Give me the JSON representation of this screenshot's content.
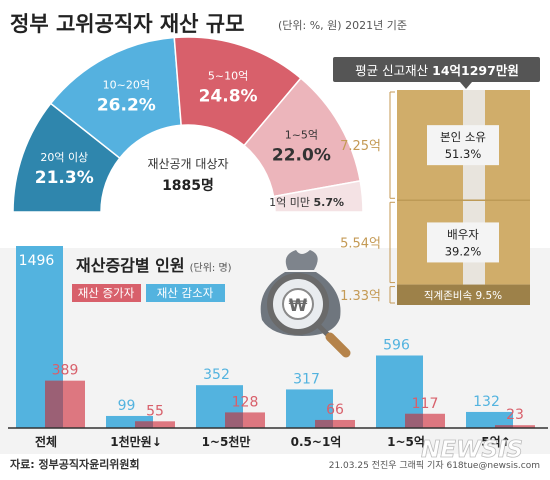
{
  "header": {
    "title": "정부 고위공직자 재산 규모",
    "unit_note": "(단위: %, 원) 2021년 기준"
  },
  "colors": {
    "background": "#ffffff",
    "bottom_band": "#f3f3f3",
    "increase": "#d8606b",
    "decrease": "#53b3df",
    "donut_dark": "#2f86ad",
    "donut_mid": "#55b1df",
    "donut_red": "#d8606b",
    "donut_pink": "#ecb5bb",
    "donut_light": "#f4e2e4",
    "box_tan": "#d0ad6a",
    "box_dark": "#9d8149",
    "tape": "#eaeaea",
    "inner_label_bg": "#f4f4f4",
    "left_value_text": "#c49a55"
  },
  "chart_data": [
    {
      "type": "pie",
      "variant": "semi-donut",
      "center_label": "재산공개 대상자",
      "center_value": "1885명",
      "slices": [
        {
          "label": "20억 이상",
          "value": 21.3,
          "value_text": "21.3%",
          "color": "#2f86ad"
        },
        {
          "label": "10~20억",
          "value": 26.2,
          "value_text": "26.2%",
          "color": "#55b1df"
        },
        {
          "label": "5~10억",
          "value": 24.8,
          "value_text": "24.8%",
          "color": "#d8606b"
        },
        {
          "label": "1~5억",
          "value": 22.0,
          "value_text": "22.0%",
          "color": "#ecb5bb"
        },
        {
          "label": "1억 미만",
          "value": 5.7,
          "value_text": "5.7%",
          "color": "#f4e2e4"
        }
      ]
    },
    {
      "type": "bar",
      "variant": "stacked-100",
      "title": "평균 신고재산",
      "title_value": "14억1297만원",
      "segments": [
        {
          "label": "본인 소유",
          "share": 51.3,
          "share_text": "51.3%",
          "amount": "7.25억"
        },
        {
          "label": "배우자",
          "share": 39.2,
          "share_text": "39.2%",
          "amount": "5.54억"
        },
        {
          "label": "직계존비속",
          "share": 9.5,
          "share_text": "9.5%",
          "amount": "1.33억"
        }
      ]
    },
    {
      "type": "bar",
      "title": "재산증감별 인원",
      "unit": "(단위: 명)",
      "categories": [
        "전체",
        "1천만원↓",
        "1~5천만",
        "0.5~1억",
        "1~5억",
        "5억↑"
      ],
      "series": [
        {
          "name": "재산 감소자",
          "color": "#53b3df",
          "values": [
            1496,
            99,
            352,
            317,
            596,
            132
          ]
        },
        {
          "name": "재산 증가자",
          "color": "#d8606b",
          "values": [
            389,
            55,
            128,
            66,
            117,
            23
          ]
        }
      ]
    }
  ],
  "footer": {
    "source": "자료: 정부공직자윤리위원회",
    "credit": "21.03.25 전진우 그래픽 기자 618tue@newsis.com",
    "watermark": "NEWSIS"
  }
}
